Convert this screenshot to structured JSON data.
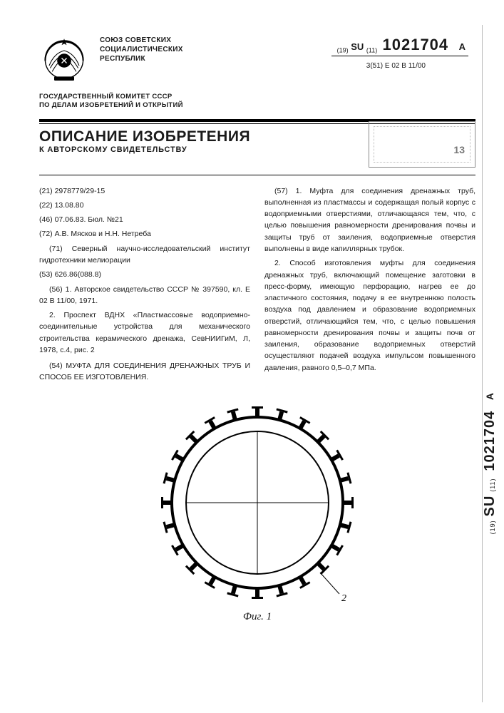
{
  "header": {
    "union_line1": "СОЮЗ СОВЕТСКИХ",
    "union_line2": "СОЦИАЛИСТИЧЕСКИХ",
    "union_line3": "РЕСПУБЛИК",
    "prefix_19": "(19)",
    "country": "SU",
    "prefix_11": "(11)",
    "doc_number": "1021704",
    "kind": "A",
    "classification_prefix": "3(51)",
    "classification": "E 02 B 11/00",
    "committee_line1": "ГОСУДАРСТВЕННЫЙ КОМИТЕТ СССР",
    "committee_line2": "ПО ДЕЛАМ ИЗОБРЕТЕНИЙ И ОТКРЫТИЙ"
  },
  "title": {
    "main": "ОПИСАНИЕ ИЗОБРЕТЕНИЯ",
    "sub": "К АВТОРСКОМУ СВИДЕТЕЛЬСТВУ"
  },
  "stamp": {
    "line1": " ",
    "line2": " ",
    "num": "13"
  },
  "left": {
    "f21": "(21) 2978779/29-15",
    "f22": "(22) 13.08.80",
    "f46": "(46) 07.06.83. Бюл. №21",
    "f72": "(72) А.В. Мясков и Н.Н. Нетреба",
    "f71": "(71) Северный научно-исследовательский институт гидротехники мелиорации",
    "f53": "(53) 626.86(088.8)",
    "f56_1": "(56) 1. Авторское свидетельство СССР № 397590, кл. E 02 B 11/00, 1971.",
    "f56_2": "2. Проспект ВДНХ «Пластмассовые водоприемно-соединительные устройства для механического строительства керамического дренажа, СевНИИГиМ, Л, 1978, с.4, рис. 2",
    "f54": "(54) МУФТА ДЛЯ СОЕДИНЕНИЯ ДРЕНАЖНЫХ ТРУБ И СПОСОБ ЕЕ ИЗГОТОВЛЕНИЯ."
  },
  "right": {
    "claim1": "(57) 1. Муфта для соединения дренажных труб, выполненная из пластмассы и содержащая полый корпус с водоприемными отверстиями, отличающаяся тем, что, с целью повышения равномерности дренирования почвы и защиты труб от заиления, водоприемные отверстия выполнены в виде капиллярных трубок.",
    "claim2": "2. Способ изготовления муфты для соединения дренажных труб, включающий помещение заготовки в пресс-форму, имеющую перфорацию, нагрев ее до эластичного состояния, подачу в ее внутреннюю полость воздуха под давлением и образование водоприемных отверстий, отличающийся тем, что, с целью повышения равномерности дренирования почвы и защиты почв от заиления, образование водоприемных отверстий осуществляют подачей воздуха импульсом повышенного давления, равного 0,5–0,7 МПа."
  },
  "figure": {
    "caption": "Фиг. 1",
    "label_ref": "2",
    "colors": {
      "stroke": "#000000",
      "fill": "#ffffff"
    },
    "geometry": {
      "outer_r": 120,
      "inner_r": 100,
      "tube_count": 24,
      "tube_len": 12,
      "tube_width": 6,
      "cap_width": 16,
      "cap_height": 3
    }
  },
  "side": {
    "prefix_19": "(19)",
    "country": "SU",
    "prefix_11": "(11)",
    "number": "1021704",
    "kind": "A"
  }
}
